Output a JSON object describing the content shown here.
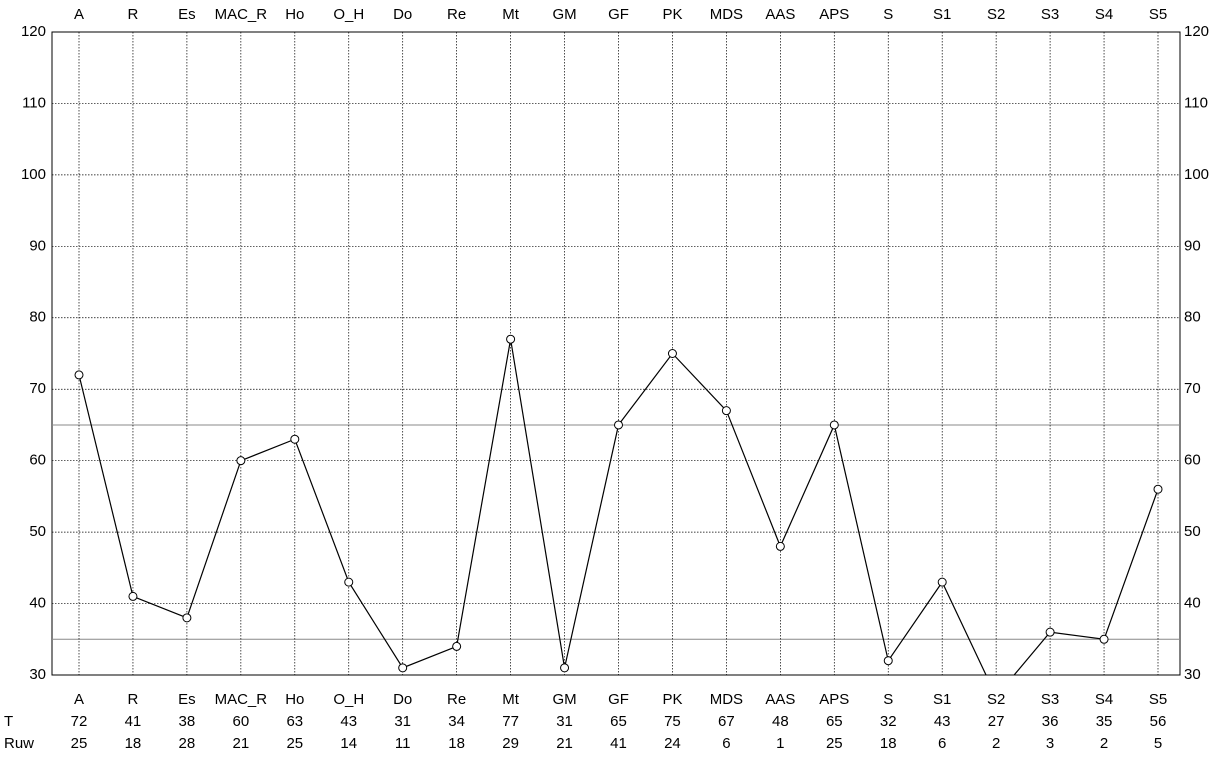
{
  "chart_data": {
    "type": "line",
    "categories": [
      "A",
      "R",
      "Es",
      "MAC_R",
      "Ho",
      "O_H",
      "Do",
      "Re",
      "Mt",
      "GM",
      "GF",
      "PK",
      "MDS",
      "AAS",
      "APS",
      "S",
      "S1",
      "S2",
      "S3",
      "S4",
      "S5"
    ],
    "series": [
      {
        "name": "T",
        "color": "#000000",
        "values": [
          72,
          41,
          38,
          60,
          63,
          43,
          31,
          34,
          77,
          31,
          65,
          75,
          67,
          48,
          65,
          32,
          43,
          27,
          36,
          35,
          56
        ]
      }
    ],
    "raw_scores": {
      "label": "Ruw",
      "values": [
        25,
        18,
        28,
        21,
        25,
        14,
        11,
        18,
        29,
        21,
        41,
        24,
        6,
        1,
        25,
        18,
        6,
        2,
        3,
        2,
        5
      ]
    },
    "ylim": [
      30,
      120
    ],
    "yticks": [
      30,
      40,
      50,
      60,
      70,
      80,
      90,
      100,
      110,
      120
    ],
    "reference_lines": [
      35,
      65
    ],
    "grid": true
  }
}
